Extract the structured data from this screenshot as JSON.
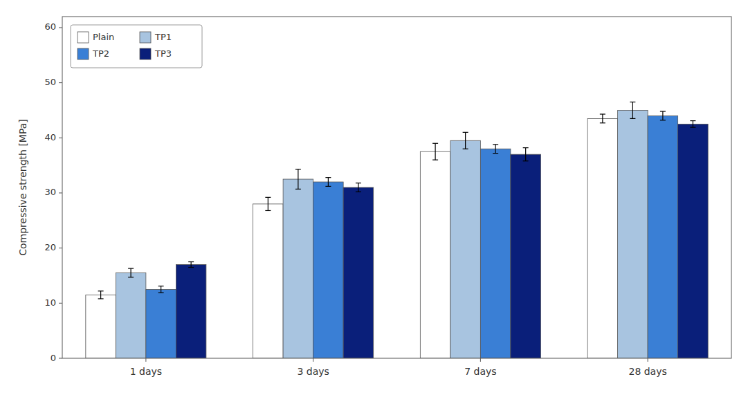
{
  "chart_data": {
    "type": "bar",
    "categories": [
      "1 days",
      "3 days",
      "7 days",
      "28 days"
    ],
    "series": [
      {
        "name": "Plain",
        "color": "#ffffff",
        "values": [
          11.5,
          28.0,
          37.5,
          43.5
        ],
        "errors": [
          0.7,
          1.2,
          1.5,
          0.8
        ]
      },
      {
        "name": "TP1",
        "color": "#a8c4e0",
        "values": [
          15.5,
          32.5,
          39.5,
          45.0
        ],
        "errors": [
          0.8,
          1.8,
          1.5,
          1.5
        ]
      },
      {
        "name": "TP2",
        "color": "#3a7fd5",
        "values": [
          12.5,
          32.0,
          38.0,
          44.0
        ],
        "errors": [
          0.6,
          0.8,
          0.8,
          0.8
        ]
      },
      {
        "name": "TP3",
        "color": "#0a1f7a",
        "values": [
          17.0,
          31.0,
          37.0,
          42.5
        ],
        "errors": [
          0.5,
          0.8,
          1.2,
          0.6
        ]
      }
    ],
    "ylabel": "Compressive strength [MPa]",
    "ylim": [
      0,
      62
    ],
    "yticks": [
      0,
      10,
      20,
      30,
      40,
      50,
      60
    ],
    "grid": false,
    "legend": "upper-left"
  }
}
